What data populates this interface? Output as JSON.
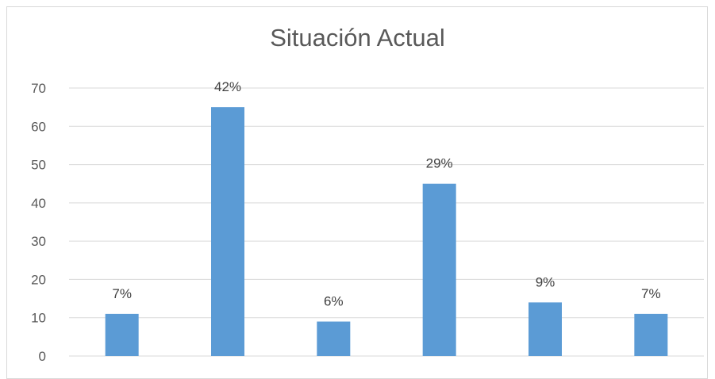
{
  "chart_data": {
    "type": "bar",
    "title": "Situación Actual",
    "xlabel": "",
    "ylabel": "",
    "categories": [
      "",
      "",
      "",
      "",
      "",
      ""
    ],
    "values": [
      11,
      65,
      9,
      45,
      14,
      11
    ],
    "data_labels": [
      "7%",
      "42%",
      "6%",
      "29%",
      "9%",
      "7%"
    ],
    "y_ticks": [
      "0",
      "10",
      "20",
      "30",
      "40",
      "50",
      "60",
      "70"
    ],
    "ylim": [
      0,
      70
    ],
    "grid": true,
    "legend": "none",
    "colors": {
      "bar": "#5b9bd5",
      "grid": "#d9d9d9",
      "axis_text": "#595959",
      "label_text": "#404040"
    }
  }
}
